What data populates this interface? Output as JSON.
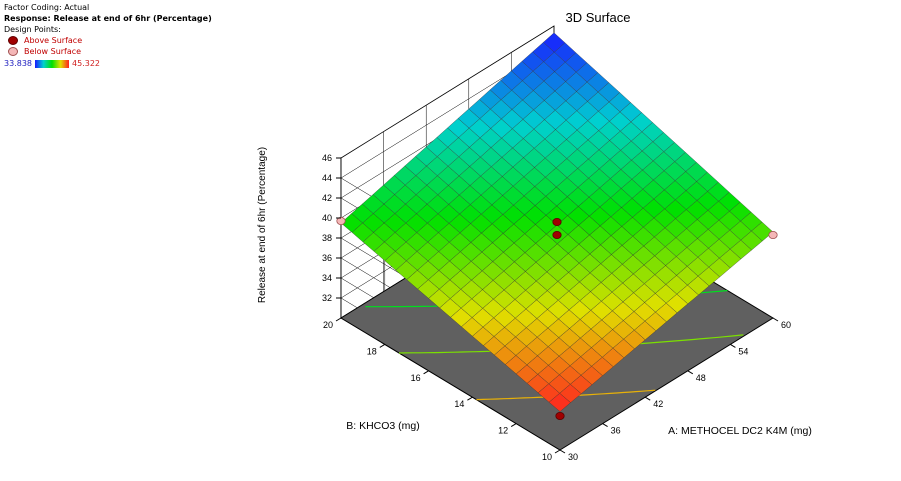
{
  "legend": {
    "factor_coding": "Factor Coding: Actual",
    "response": "Response: Release at end of 6hr (Percentage)",
    "design_points_label": "Design Points:",
    "above_surface": "Above Surface",
    "below_surface": "Below Surface",
    "color_min": "33.838",
    "color_max": "45.322"
  },
  "colors": {
    "above_point": "#a00000",
    "below_point": "#f4b7b7",
    "floor": "#606060"
  },
  "chart_data": {
    "type": "surface",
    "title": "3D Surface",
    "xlabel": "A: METHOCEL DC2 K4M (mg)",
    "ylabel": "B: KHCO3 (mg)",
    "zlabel": "Release at end of 6hr (Percentage)",
    "x_ticks": [
      "30",
      "36",
      "42",
      "48",
      "54",
      "60"
    ],
    "y_ticks": [
      "10",
      "12",
      "14",
      "16",
      "18",
      "20"
    ],
    "z_ticks": [
      "32",
      "34",
      "36",
      "38",
      "40",
      "42",
      "44",
      "46"
    ],
    "xlim": [
      30,
      60
    ],
    "ylim": [
      10,
      20
    ],
    "zlim": [
      30,
      46
    ],
    "color_range": [
      33.838,
      45.322
    ],
    "surface_corners": [
      {
        "x": 30,
        "y": 10,
        "z": 33.838
      },
      {
        "x": 60,
        "y": 10,
        "z": 38.6
      },
      {
        "x": 30,
        "y": 20,
        "z": 39.5
      },
      {
        "x": 60,
        "y": 20,
        "z": 45.322
      }
    ],
    "design_points": [
      {
        "x": 30,
        "y": 10,
        "z": 33.4,
        "position": "above"
      },
      {
        "x": 45,
        "y": 15,
        "z": 39.6,
        "position": "above"
      },
      {
        "x": 45,
        "y": 15,
        "z": 38.3,
        "position": "above"
      },
      {
        "x": 60,
        "y": 10,
        "z": 38.3,
        "position": "below"
      },
      {
        "x": 30,
        "y": 20,
        "z": 39.7,
        "position": "below"
      }
    ]
  }
}
